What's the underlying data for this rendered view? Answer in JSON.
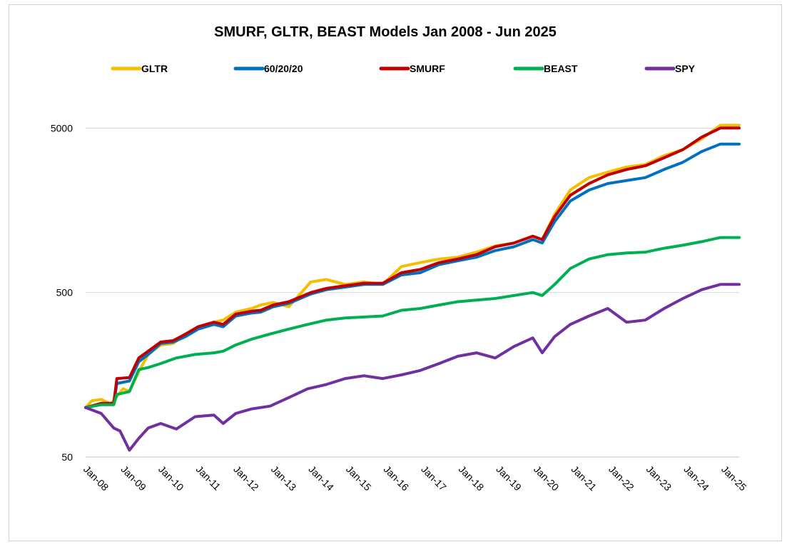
{
  "chart_data": {
    "type": "line",
    "title": "SMURF, GLTR, BEAST  Models Jan 2008 - Jun 2025",
    "xlabel": "",
    "ylabel": "",
    "y_scale": "log",
    "ylim": [
      50,
      10000
    ],
    "y_ticks": [
      50,
      500,
      5000
    ],
    "grid": true,
    "legend_position": "top",
    "x_tick_labels": [
      "Jan-08",
      "Jan-09",
      "Jan-10",
      "Jan-11",
      "Jan-12",
      "Jan-13",
      "Jan-14",
      "Jan-15",
      "Jan-16",
      "Jan-17",
      "Jan-18",
      "Jan-19",
      "Jan-20",
      "Jan-21",
      "Jan-22",
      "Jan-23",
      "Jan-24",
      "Jan-25"
    ],
    "x_range": [
      "2008-01",
      "2025-06"
    ],
    "series": [
      {
        "name": "GLTR",
        "color": "#F6BE00",
        "points": [
          [
            "2008-01",
            100
          ],
          [
            "2008-03",
            110
          ],
          [
            "2008-06",
            112
          ],
          [
            "2008-09",
            105
          ],
          [
            "2009-01",
            130
          ],
          [
            "2009-03",
            125
          ],
          [
            "2009-06",
            165
          ],
          [
            "2009-09",
            210
          ],
          [
            "2010-01",
            240
          ],
          [
            "2010-05",
            245
          ],
          [
            "2010-09",
            280
          ],
          [
            "2011-01",
            310
          ],
          [
            "2011-06",
            330
          ],
          [
            "2011-09",
            340
          ],
          [
            "2012-01",
            380
          ],
          [
            "2012-06",
            400
          ],
          [
            "2012-09",
            420
          ],
          [
            "2013-01",
            435
          ],
          [
            "2013-06",
            410
          ],
          [
            "2014-01",
            580
          ],
          [
            "2014-06",
            600
          ],
          [
            "2014-12",
            560
          ],
          [
            "2015-06",
            580
          ],
          [
            "2015-12",
            560
          ],
          [
            "2016-06",
            720
          ],
          [
            "2016-12",
            760
          ],
          [
            "2017-06",
            800
          ],
          [
            "2017-12",
            820
          ],
          [
            "2018-06",
            880
          ],
          [
            "2018-12",
            960
          ],
          [
            "2019-06",
            1000
          ],
          [
            "2019-12",
            1100
          ],
          [
            "2020-03",
            1050
          ],
          [
            "2020-07",
            1500
          ],
          [
            "2020-12",
            2100
          ],
          [
            "2021-06",
            2500
          ],
          [
            "2021-12",
            2700
          ],
          [
            "2022-06",
            2900
          ],
          [
            "2022-12",
            3000
          ],
          [
            "2023-06",
            3400
          ],
          [
            "2023-12",
            3700
          ],
          [
            "2024-06",
            4300
          ],
          [
            "2024-12",
            5200
          ],
          [
            "2025-06",
            5200
          ]
        ]
      },
      {
        "name": "60/20/20",
        "color": "#0070C0",
        "points": [
          [
            "2008-01",
            100
          ],
          [
            "2008-06",
            105
          ],
          [
            "2008-10",
            105
          ],
          [
            "2008-11",
            140
          ],
          [
            "2009-03",
            145
          ],
          [
            "2009-06",
            190
          ],
          [
            "2009-09",
            210
          ],
          [
            "2010-01",
            245
          ],
          [
            "2010-05",
            250
          ],
          [
            "2010-09",
            270
          ],
          [
            "2011-01",
            300
          ],
          [
            "2011-06",
            320
          ],
          [
            "2011-09",
            310
          ],
          [
            "2012-01",
            360
          ],
          [
            "2012-06",
            375
          ],
          [
            "2012-09",
            380
          ],
          [
            "2013-01",
            410
          ],
          [
            "2013-06",
            430
          ],
          [
            "2014-01",
            490
          ],
          [
            "2014-06",
            520
          ],
          [
            "2014-12",
            540
          ],
          [
            "2015-06",
            560
          ],
          [
            "2015-12",
            560
          ],
          [
            "2016-06",
            640
          ],
          [
            "2016-12",
            660
          ],
          [
            "2017-06",
            740
          ],
          [
            "2017-12",
            780
          ],
          [
            "2018-06",
            820
          ],
          [
            "2018-12",
            900
          ],
          [
            "2019-06",
            950
          ],
          [
            "2019-12",
            1050
          ],
          [
            "2020-03",
            1000
          ],
          [
            "2020-07",
            1350
          ],
          [
            "2020-12",
            1800
          ],
          [
            "2021-06",
            2100
          ],
          [
            "2021-12",
            2300
          ],
          [
            "2022-06",
            2400
          ],
          [
            "2022-12",
            2500
          ],
          [
            "2023-06",
            2800
          ],
          [
            "2023-12",
            3100
          ],
          [
            "2024-06",
            3600
          ],
          [
            "2024-12",
            4000
          ],
          [
            "2025-06",
            4000
          ]
        ]
      },
      {
        "name": "SMURF",
        "color": "#C00000",
        "points": [
          [
            "2008-01",
            100
          ],
          [
            "2008-06",
            106
          ],
          [
            "2008-10",
            106
          ],
          [
            "2008-11",
            150
          ],
          [
            "2009-03",
            152
          ],
          [
            "2009-06",
            200
          ],
          [
            "2009-09",
            220
          ],
          [
            "2010-01",
            250
          ],
          [
            "2010-05",
            255
          ],
          [
            "2010-09",
            280
          ],
          [
            "2011-01",
            310
          ],
          [
            "2011-06",
            330
          ],
          [
            "2011-09",
            320
          ],
          [
            "2012-01",
            370
          ],
          [
            "2012-06",
            385
          ],
          [
            "2012-09",
            390
          ],
          [
            "2013-01",
            420
          ],
          [
            "2013-06",
            440
          ],
          [
            "2014-01",
            500
          ],
          [
            "2014-06",
            530
          ],
          [
            "2014-12",
            550
          ],
          [
            "2015-06",
            570
          ],
          [
            "2015-12",
            570
          ],
          [
            "2016-06",
            660
          ],
          [
            "2016-12",
            690
          ],
          [
            "2017-06",
            760
          ],
          [
            "2017-12",
            800
          ],
          [
            "2018-06",
            850
          ],
          [
            "2018-12",
            950
          ],
          [
            "2019-06",
            1000
          ],
          [
            "2019-12",
            1100
          ],
          [
            "2020-03",
            1050
          ],
          [
            "2020-07",
            1450
          ],
          [
            "2020-12",
            1950
          ],
          [
            "2021-06",
            2300
          ],
          [
            "2021-12",
            2600
          ],
          [
            "2022-06",
            2800
          ],
          [
            "2022-12",
            2950
          ],
          [
            "2023-06",
            3300
          ],
          [
            "2023-12",
            3700
          ],
          [
            "2024-06",
            4400
          ],
          [
            "2024-12",
            5000
          ],
          [
            "2025-06",
            5000
          ]
        ]
      },
      {
        "name": "BEAST",
        "color": "#00B050",
        "points": [
          [
            "2008-01",
            100
          ],
          [
            "2008-06",
            104
          ],
          [
            "2008-10",
            104
          ],
          [
            "2008-11",
            120
          ],
          [
            "2009-03",
            125
          ],
          [
            "2009-06",
            170
          ],
          [
            "2009-09",
            175
          ],
          [
            "2010-01",
            185
          ],
          [
            "2010-06",
            200
          ],
          [
            "2010-12",
            210
          ],
          [
            "2011-06",
            215
          ],
          [
            "2011-09",
            220
          ],
          [
            "2012-01",
            240
          ],
          [
            "2012-06",
            260
          ],
          [
            "2012-12",
            280
          ],
          [
            "2013-06",
            300
          ],
          [
            "2013-12",
            320
          ],
          [
            "2014-06",
            340
          ],
          [
            "2014-12",
            350
          ],
          [
            "2015-06",
            355
          ],
          [
            "2015-12",
            360
          ],
          [
            "2016-06",
            390
          ],
          [
            "2016-12",
            400
          ],
          [
            "2017-06",
            420
          ],
          [
            "2017-12",
            440
          ],
          [
            "2018-06",
            450
          ],
          [
            "2018-12",
            460
          ],
          [
            "2019-06",
            480
          ],
          [
            "2019-12",
            500
          ],
          [
            "2020-03",
            480
          ],
          [
            "2020-07",
            560
          ],
          [
            "2020-12",
            700
          ],
          [
            "2021-06",
            800
          ],
          [
            "2021-12",
            850
          ],
          [
            "2022-06",
            870
          ],
          [
            "2022-12",
            880
          ],
          [
            "2023-06",
            930
          ],
          [
            "2023-12",
            970
          ],
          [
            "2024-06",
            1020
          ],
          [
            "2024-12",
            1080
          ],
          [
            "2025-06",
            1080
          ]
        ]
      },
      {
        "name": "SPY",
        "color": "#7030A0",
        "points": [
          [
            "2008-01",
            100
          ],
          [
            "2008-06",
            92
          ],
          [
            "2008-10",
            75
          ],
          [
            "2008-12",
            72
          ],
          [
            "2009-03",
            55
          ],
          [
            "2009-06",
            65
          ],
          [
            "2009-09",
            75
          ],
          [
            "2010-01",
            80
          ],
          [
            "2010-06",
            74
          ],
          [
            "2010-12",
            88
          ],
          [
            "2011-06",
            90
          ],
          [
            "2011-09",
            80
          ],
          [
            "2012-01",
            92
          ],
          [
            "2012-06",
            98
          ],
          [
            "2012-12",
            102
          ],
          [
            "2013-06",
            115
          ],
          [
            "2013-12",
            130
          ],
          [
            "2014-06",
            138
          ],
          [
            "2014-12",
            150
          ],
          [
            "2015-06",
            156
          ],
          [
            "2015-12",
            150
          ],
          [
            "2016-06",
            158
          ],
          [
            "2016-12",
            168
          ],
          [
            "2017-06",
            185
          ],
          [
            "2017-12",
            205
          ],
          [
            "2018-06",
            215
          ],
          [
            "2018-12",
            200
          ],
          [
            "2019-06",
            235
          ],
          [
            "2019-12",
            265
          ],
          [
            "2020-03",
            215
          ],
          [
            "2020-07",
            270
          ],
          [
            "2020-12",
            320
          ],
          [
            "2021-06",
            360
          ],
          [
            "2021-12",
            400
          ],
          [
            "2022-06",
            330
          ],
          [
            "2022-12",
            340
          ],
          [
            "2023-06",
            400
          ],
          [
            "2023-12",
            460
          ],
          [
            "2024-06",
            520
          ],
          [
            "2024-12",
            560
          ],
          [
            "2025-06",
            560
          ]
        ]
      }
    ]
  }
}
